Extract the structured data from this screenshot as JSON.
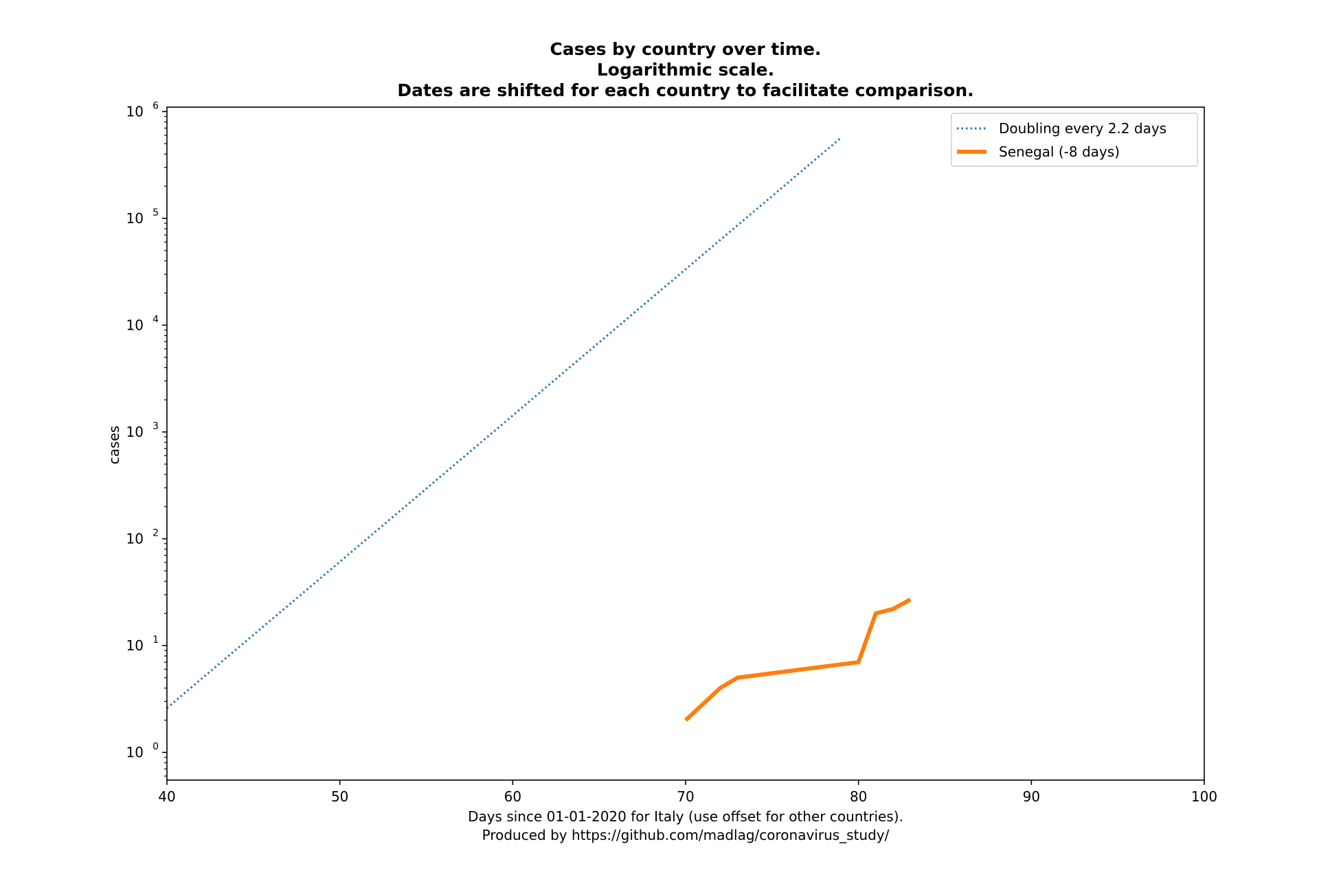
{
  "chart_data": {
    "type": "line",
    "title_lines": [
      "Cases by country over time.",
      "Logarithmic scale.",
      "Dates are shifted for each country to facilitate comparison."
    ],
    "xlabel_lines": [
      "Days since 01-01-2020 for Italy (use offset for other countries).",
      "Produced by https://github.com/madlag/coronavirus_study/"
    ],
    "ylabel": "cases",
    "xlim": [
      40,
      100
    ],
    "y_scale": "log",
    "ylim": [
      0.55,
      1100000
    ],
    "x_ticks": [
      40,
      50,
      60,
      70,
      80,
      90,
      100
    ],
    "y_ticks": [
      {
        "value": 1,
        "base": "10",
        "exp": "0"
      },
      {
        "value": 10,
        "base": "10",
        "exp": "1"
      },
      {
        "value": 100,
        "base": "10",
        "exp": "2"
      },
      {
        "value": 1000,
        "base": "10",
        "exp": "3"
      },
      {
        "value": 10000,
        "base": "10",
        "exp": "4"
      },
      {
        "value": 100000,
        "base": "10",
        "exp": "5"
      },
      {
        "value": 1000000,
        "base": "10",
        "exp": "6"
      }
    ],
    "grid": false,
    "legend_position": "top-right",
    "series": [
      {
        "name": "Doubling every 2.2 days",
        "color": "#1f77b4",
        "style": "dotted",
        "x": [
          40,
          79
        ],
        "y": [
          2.6,
          570000
        ]
      },
      {
        "name": "Senegal (-8 days)",
        "color": "#ff7f0e",
        "style": "solid",
        "x": [
          70,
          72,
          73,
          80,
          81,
          82,
          83
        ],
        "y": [
          2,
          4,
          5,
          7,
          20,
          22,
          27
        ]
      }
    ]
  }
}
